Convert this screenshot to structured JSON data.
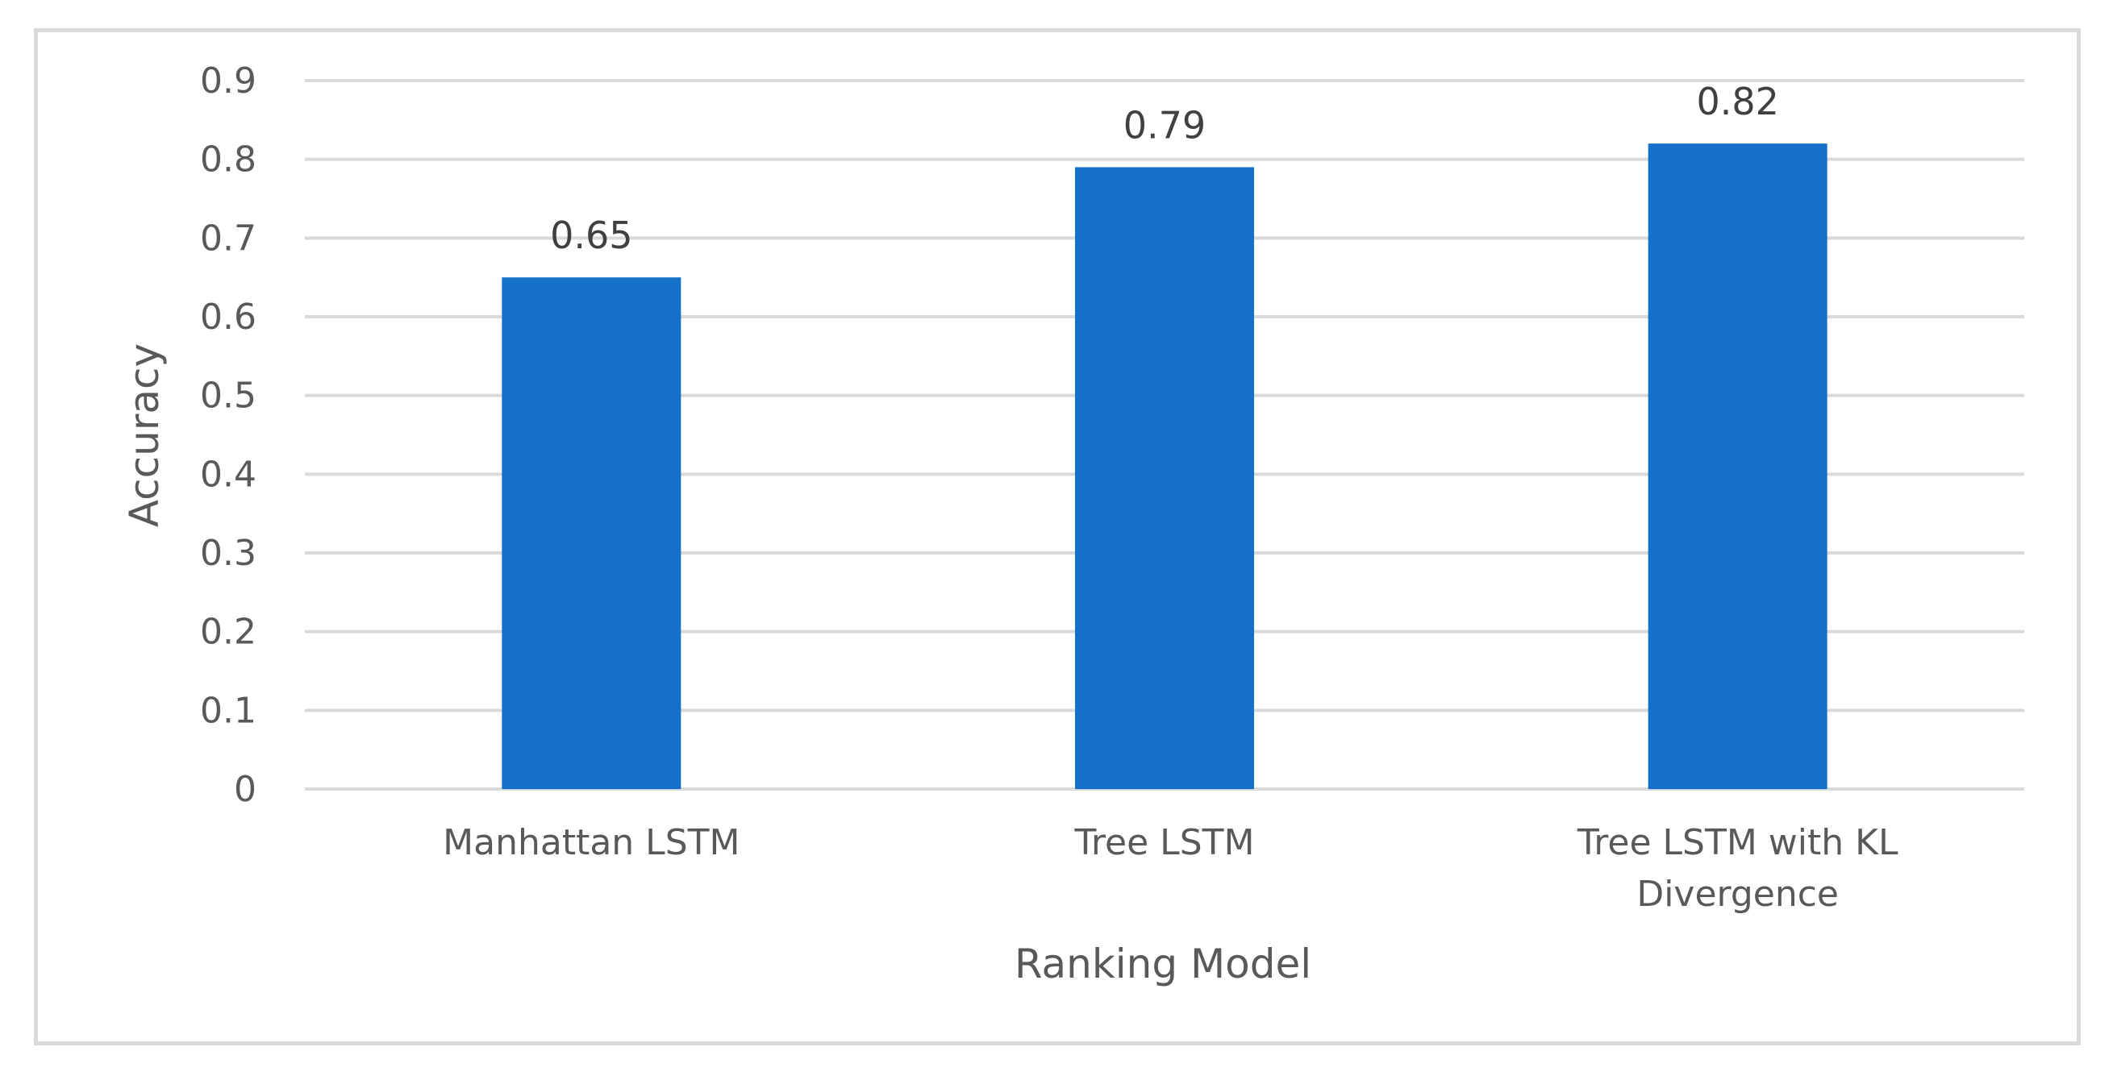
{
  "chart_data": {
    "type": "bar",
    "title": "",
    "xlabel": "Ranking Model",
    "ylabel": "Accuracy",
    "categories": [
      [
        "Manhattan LSTM"
      ],
      [
        "Tree LSTM"
      ],
      [
        "Tree LSTM with KL",
        "Divergence"
      ]
    ],
    "values": [
      0.65,
      0.79,
      0.82
    ],
    "data_labels": [
      "0.65",
      "0.79",
      "0.82"
    ],
    "ylim": [
      0,
      0.9
    ],
    "yticks": [
      "0",
      "0.1",
      "0.2",
      "0.3",
      "0.4",
      "0.5",
      "0.6",
      "0.7",
      "0.8",
      "0.9"
    ],
    "grid": true,
    "legend": "none",
    "colors": {
      "bar": "#1570c9",
      "grid": "#d9d9d9",
      "text": "#595959",
      "frame": "#d9d9d9"
    }
  }
}
